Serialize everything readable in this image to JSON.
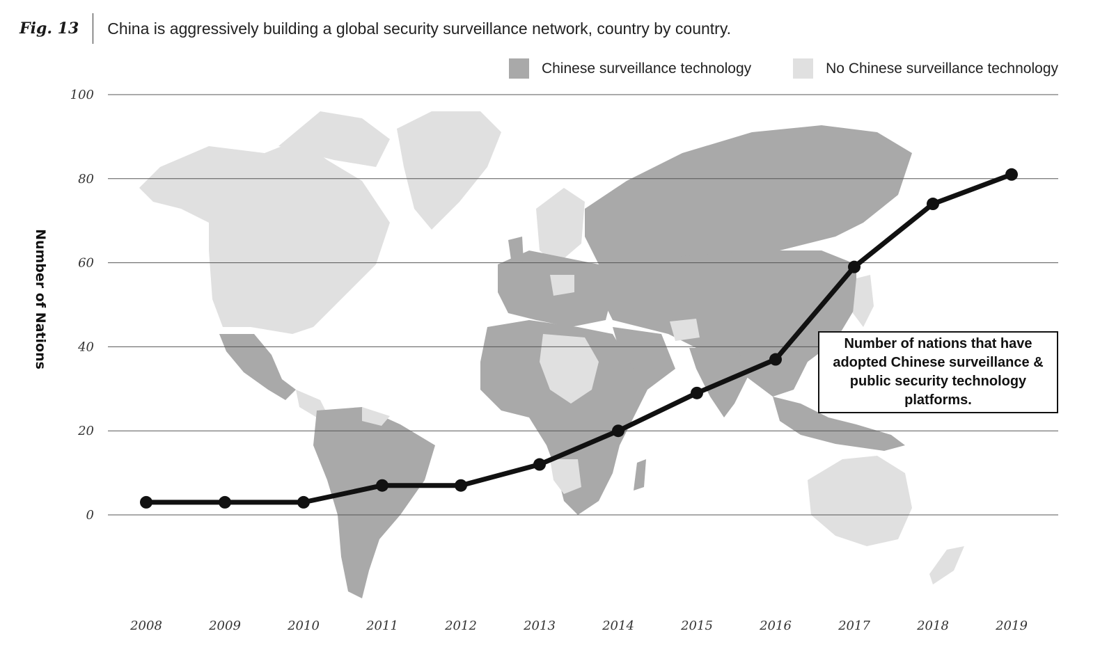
{
  "figure": {
    "label": "Fig. 13",
    "title": "China is aggressively building a global security surveillance network, country by country."
  },
  "legend": [
    {
      "label": "Chinese surveillance technology",
      "color": "#a9a9a9"
    },
    {
      "label": "No Chinese surveillance technology",
      "color": "#e0e0e0"
    }
  ],
  "annotation": "Number of nations that have adopted Chinese surveillance & public security technology platforms.",
  "chart_data": {
    "type": "line",
    "x": [
      "2008",
      "2009",
      "2010",
      "2011",
      "2012",
      "2013",
      "2014",
      "2015",
      "2016",
      "2017",
      "2018",
      "2019"
    ],
    "series": [
      {
        "values": [
          3,
          3,
          3,
          7,
          7,
          12,
          20,
          29,
          37,
          59,
          74,
          81
        ]
      }
    ],
    "xlabel": "",
    "ylabel": "Number of Nations",
    "ylim": [
      0,
      100
    ],
    "yticks": [
      0,
      20,
      40,
      60,
      80,
      100
    ],
    "grid": true,
    "legend_position": "top-right",
    "line_color": "#111111",
    "background": "world-map"
  }
}
